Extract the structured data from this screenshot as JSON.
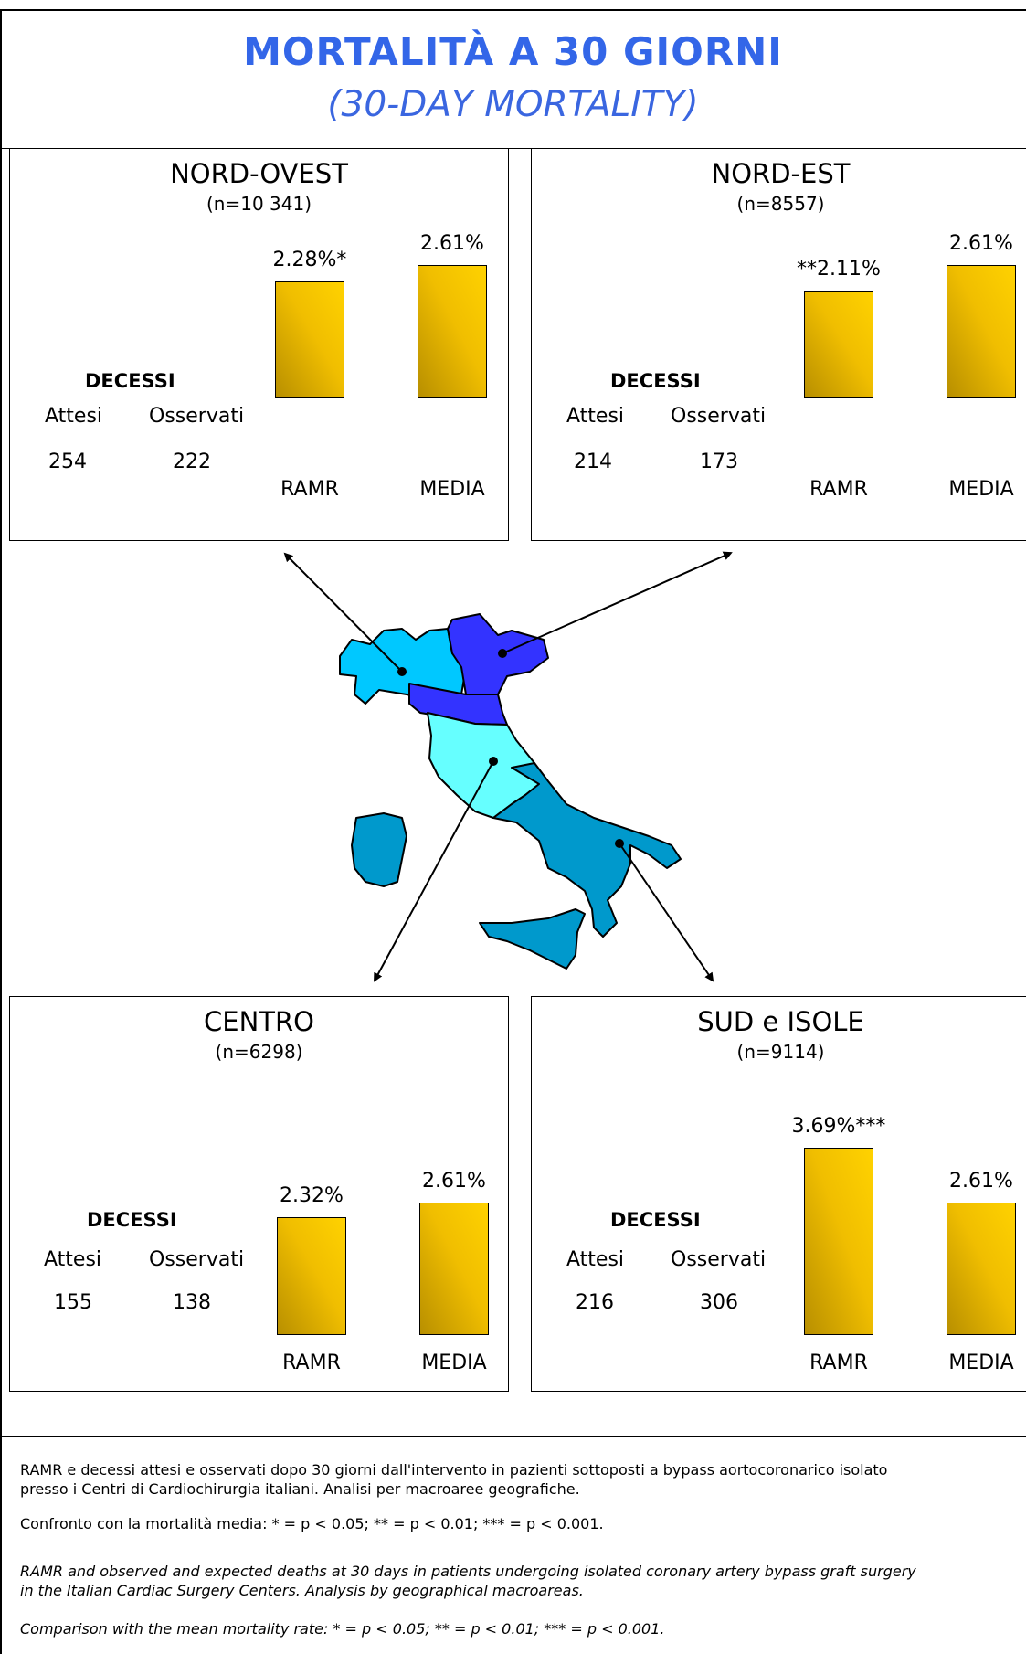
{
  "title": "MORTALITÀ A 30 GIORNI",
  "subtitle": "(30-DAY MORTALITY)",
  "labels": {
    "deaths": "DECESSI",
    "expected": "Attesi",
    "observed": "Osservati",
    "ramr": "RAMR",
    "mean": "MEDIA"
  },
  "chart_data": [
    {
      "type": "bar",
      "region": "NORD-OVEST",
      "n": "(n=10 341)",
      "categories": [
        "RAMR",
        "MEDIA"
      ],
      "values": [
        2.28,
        2.61
      ],
      "value_labels": [
        "2.28%*",
        "2.61%"
      ],
      "expected_deaths": "254",
      "observed_deaths": "222"
    },
    {
      "type": "bar",
      "region": "NORD-EST",
      "n": "(n=8557)",
      "categories": [
        "RAMR",
        "MEDIA"
      ],
      "values": [
        2.11,
        2.61
      ],
      "value_labels": [
        "**2.11%",
        "2.61%"
      ],
      "expected_deaths": "214",
      "observed_deaths": "173"
    },
    {
      "type": "bar",
      "region": "CENTRO",
      "n": "(n=6298)",
      "categories": [
        "RAMR",
        "MEDIA"
      ],
      "values": [
        2.32,
        2.61
      ],
      "value_labels": [
        "2.32%",
        "2.61%"
      ],
      "expected_deaths": "155",
      "observed_deaths": "138"
    },
    {
      "type": "bar",
      "region": "SUD e ISOLE",
      "n": "(n=9114)",
      "categories": [
        "RAMR",
        "MEDIA"
      ],
      "values": [
        3.69,
        2.61
      ],
      "value_labels": [
        "3.69%***",
        "2.61%"
      ],
      "expected_deaths": "216",
      "observed_deaths": "306"
    }
  ],
  "map_colors": {
    "nord_ovest": "#00c8ff",
    "nord_est": "#3333ff",
    "centro": "#66ffff",
    "sud_isole": "#0099cc",
    "bar_fill": "#f5c400"
  },
  "footnotes": {
    "it_1": "RAMR e decessi attesi e osservati dopo 30 giorni dall'intervento in pazienti sottoposti a bypass aortocoronarico isolato",
    "it_2": "presso i Centri di Cardiochirurgia italiani. Analisi per macroaree geografiche.",
    "it_3": "Confronto con la mortalità media: * = p < 0.05; ** = p < 0.01; *** = p < 0.001.",
    "en_1": "RAMR and observed and expected deaths at 30 days in patients undergoing isolated coronary artery bypass graft surgery",
    "en_2": "in the Italian Cardiac Surgery Centers. Analysis by geographical macroareas.",
    "en_3": "Comparison with the mean mortality rate: * = p < 0.05; ** = p < 0.01; *** = p < 0.001."
  }
}
